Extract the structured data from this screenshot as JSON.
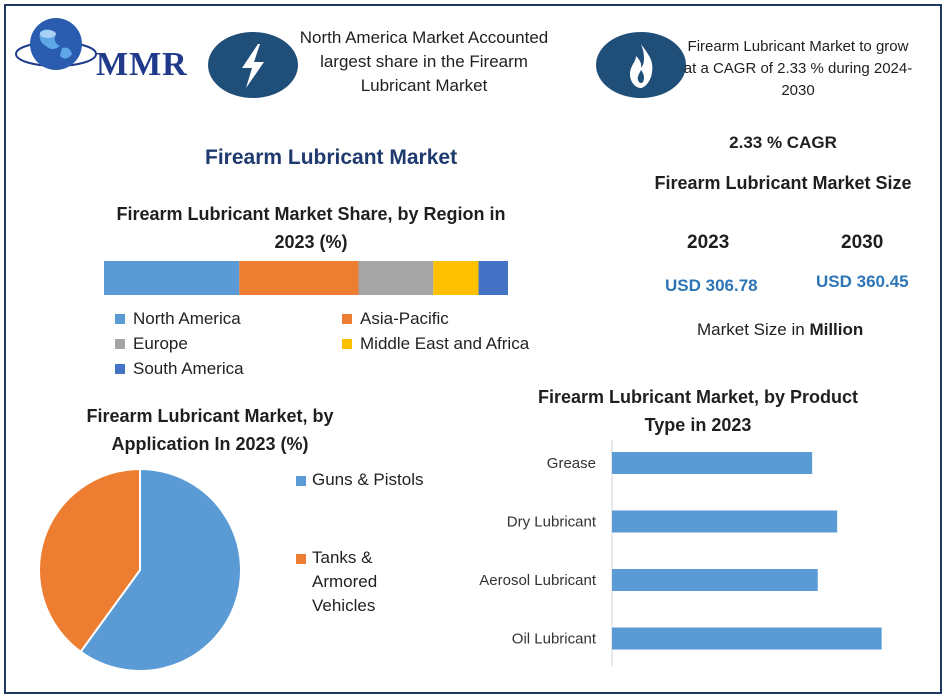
{
  "brand": {
    "logo_text": "MMR"
  },
  "header": {
    "highlight1": "North America Market Accounted largest share in the Firearm Lubricant Market",
    "highlight2": "Firearm Lubricant Market to grow at a CAGR of 2.33 % during 2024-2030"
  },
  "main_title": "Firearm Lubricant Market",
  "cagr": {
    "label": "2.33 % CAGR",
    "size_title": "Firearm Lubricant Market Size",
    "year1": "2023",
    "year2": "2030",
    "value1": "USD 306.78",
    "value2": "USD 360.45",
    "unit_label": "Market Size in",
    "unit_value": "Million"
  },
  "colors": {
    "blue": "#5b9bd5",
    "orange": "#ed7d31",
    "gray": "#a5a5a5",
    "yellow": "#ffc000",
    "dark_blue": "#4472c4",
    "navy": "#1f4e79"
  },
  "chart_data": [
    {
      "type": "bar",
      "title": "Firearm Lubricant Market Share, by Region in 2023 (%)",
      "stacked": true,
      "orientation": "horizontal",
      "series": [
        {
          "name": "North America",
          "values": [
            33.5
          ]
        },
        {
          "name": "Asia-Pacific",
          "values": [
            29.5
          ]
        },
        {
          "name": "Europe",
          "values": [
            18.5
          ]
        },
        {
          "name": "Middle East and Africa",
          "values": [
            11.2
          ]
        },
        {
          "name": "South America",
          "values": [
            7.3
          ]
        }
      ],
      "legend_position": "bottom",
      "colors": [
        "#5b9bd5",
        "#ed7d31",
        "#a5a5a5",
        "#ffc000",
        "#4472c4"
      ]
    },
    {
      "type": "pie",
      "title": "Firearm Lubricant Market, by Application In 2023 (%)",
      "labels": [
        "Guns & Pistols",
        "Tanks & Armored Vehicles"
      ],
      "legend_labels": [
        [
          "Guns & Pistols"
        ],
        [
          "Tanks &",
          "Armored",
          "Vehicles"
        ]
      ],
      "values": [
        60,
        40
      ],
      "colors": [
        "#5b9bd5",
        "#ed7d31"
      ],
      "legend_position": "right"
    },
    {
      "type": "bar",
      "orientation": "horizontal",
      "title": "Firearm Lubricant Market, by Product Type in 2023",
      "categories": [
        "Grease",
        "Dry Lubricant",
        "Aerosol Lubricant",
        "Oil Lubricant"
      ],
      "values": [
        72,
        81,
        74,
        97
      ],
      "xlim": [
        0,
        100
      ],
      "color": "#5b9bd5",
      "grid": false
    }
  ]
}
